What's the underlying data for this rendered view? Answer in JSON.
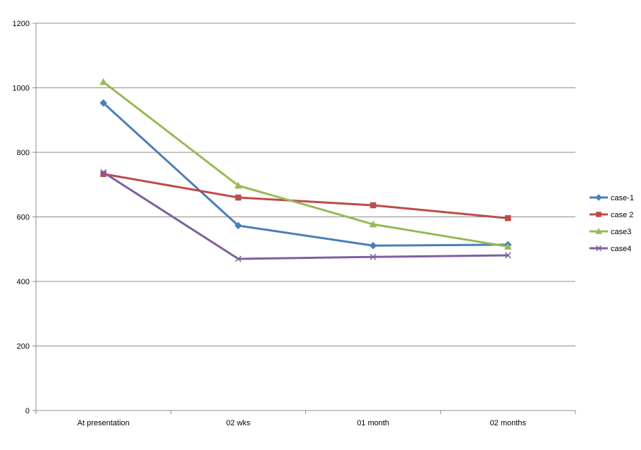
{
  "chart_data": {
    "type": "line",
    "title": "",
    "xlabel": "",
    "ylabel": "",
    "categories": [
      "At presentation",
      "02 wks",
      "01 month",
      "02 months"
    ],
    "ylim": [
      0,
      1200
    ],
    "yticks": [
      0,
      200,
      400,
      600,
      800,
      1000,
      1200
    ],
    "grid": true,
    "legend_position": "right",
    "series": [
      {
        "name": "case-1",
        "values": [
          953,
          573,
          511,
          514
        ],
        "color": "#4a7ebb",
        "marker": "diamond"
      },
      {
        "name": "case 2",
        "values": [
          733,
          660,
          636,
          596
        ],
        "color": "#be4b48",
        "marker": "square"
      },
      {
        "name": "case3",
        "values": [
          1018,
          697,
          577,
          508
        ],
        "color": "#98b954",
        "marker": "triangle"
      },
      {
        "name": "case4",
        "values": [
          738,
          470,
          476,
          481
        ],
        "color": "#7d60a0",
        "marker": "x"
      }
    ]
  }
}
